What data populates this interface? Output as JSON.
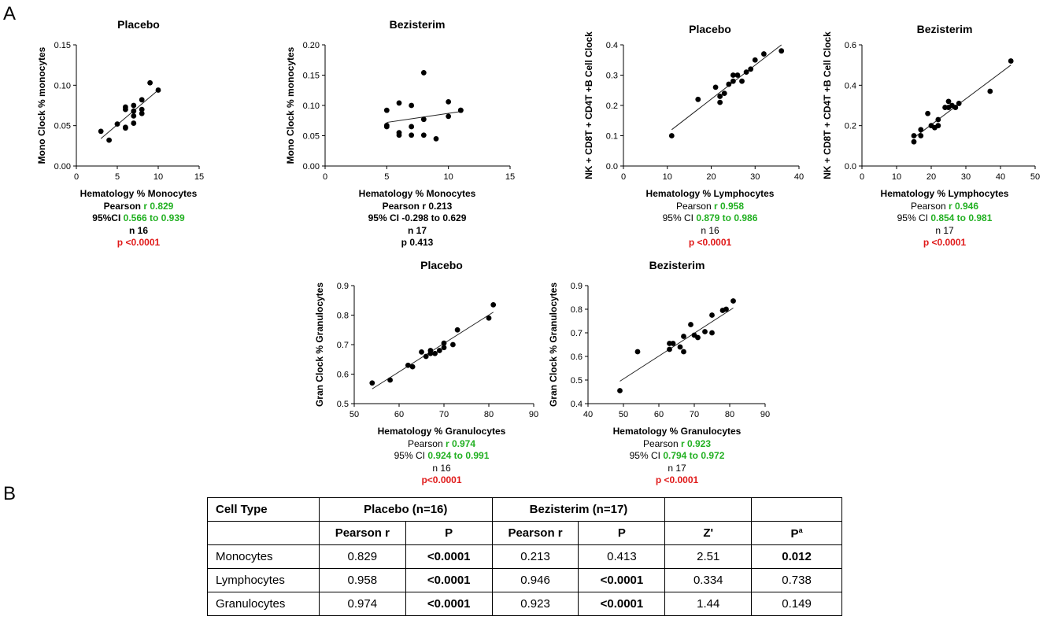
{
  "panels": {
    "a": "A",
    "b": "B"
  },
  "chart_data": [
    {
      "id": "mono-placebo",
      "type": "scatter",
      "title": "Placebo",
      "xlabel": "Hematology % Monocytes",
      "ylabel": "Mono Clock % monocytes",
      "xlim": [
        0,
        15
      ],
      "ylim": [
        0,
        0.15
      ],
      "xticks": [
        "0",
        "5",
        "10",
        "15"
      ],
      "yticks": [
        "0.00",
        "0.05",
        "0.10",
        "0.15"
      ],
      "points": [
        [
          3,
          0.043
        ],
        [
          4,
          0.032
        ],
        [
          5,
          0.052
        ],
        [
          6,
          0.048
        ],
        [
          6,
          0.047
        ],
        [
          6,
          0.07
        ],
        [
          6,
          0.073
        ],
        [
          7,
          0.053
        ],
        [
          7,
          0.062
        ],
        [
          7,
          0.068
        ],
        [
          7,
          0.075
        ],
        [
          8,
          0.065
        ],
        [
          8,
          0.07
        ],
        [
          8,
          0.082
        ],
        [
          9,
          0.103
        ],
        [
          10,
          0.094
        ]
      ],
      "fit": [
        [
          3,
          0.034
        ],
        [
          10,
          0.094
        ]
      ],
      "stats": {
        "pearson_label": "Pearson",
        "r": "r 0.829",
        "ci_label": "95%CI",
        "ci": "0.566 to 0.939",
        "n": "n 16",
        "p": "p <0.0001"
      }
    },
    {
      "id": "mono-bezisterim",
      "type": "scatter",
      "title": "Bezisterim",
      "xlabel": "Hematology % Monocytes",
      "ylabel": "Mono Clock % monocytes",
      "xlim": [
        0,
        15
      ],
      "ylim": [
        0,
        0.2
      ],
      "xticks": [
        "0",
        "5",
        "10",
        "15"
      ],
      "yticks": [
        "0.00",
        "0.05",
        "0.10",
        "0.15",
        "0.20"
      ],
      "points": [
        [
          5,
          0.092
        ],
        [
          5,
          0.065
        ],
        [
          5,
          0.067
        ],
        [
          6,
          0.104
        ],
        [
          6,
          0.055
        ],
        [
          6,
          0.051
        ],
        [
          7,
          0.1
        ],
        [
          7,
          0.065
        ],
        [
          7,
          0.051
        ],
        [
          8,
          0.154
        ],
        [
          8,
          0.077
        ],
        [
          8,
          0.051
        ],
        [
          9,
          0.045
        ],
        [
          10,
          0.106
        ],
        [
          10,
          0.082
        ],
        [
          11,
          0.092
        ],
        [
          11,
          0.092
        ]
      ],
      "fit": [
        [
          5,
          0.072
        ],
        [
          11,
          0.09
        ]
      ],
      "stats": {
        "pearson": "Pearson r 0.213",
        "ci": "95% CI -0.298 to 0.629",
        "n": "n 17",
        "p": "p 0.413"
      }
    },
    {
      "id": "lymph-placebo",
      "type": "scatter",
      "title": "Placebo",
      "xlabel": "Hematology % Lymphocytes",
      "ylabel": "NK + CD8T + CD4T +B Cell Clock",
      "xlim": [
        0,
        40
      ],
      "ylim": [
        0,
        0.4
      ],
      "xticks": [
        "0",
        "10",
        "20",
        "30",
        "40"
      ],
      "yticks": [
        "0.0",
        "0.1",
        "0.2",
        "0.3",
        "0.4"
      ],
      "points": [
        [
          11,
          0.1
        ],
        [
          17,
          0.22
        ],
        [
          21,
          0.26
        ],
        [
          22,
          0.21
        ],
        [
          22,
          0.23
        ],
        [
          23,
          0.24
        ],
        [
          24,
          0.27
        ],
        [
          25,
          0.3
        ],
        [
          25,
          0.28
        ],
        [
          26,
          0.3
        ],
        [
          27,
          0.28
        ],
        [
          28,
          0.31
        ],
        [
          29,
          0.32
        ],
        [
          30,
          0.35
        ],
        [
          32,
          0.37
        ],
        [
          36,
          0.38
        ]
      ],
      "fit": [
        [
          11,
          0.12
        ],
        [
          36,
          0.4
        ]
      ],
      "stats": {
        "pearson_label": "Pearson",
        "r": "r 0.958",
        "ci_label": "95% CI",
        "ci": "0.879 to 0.986",
        "n": "n 16",
        "p": "p <0.0001"
      }
    },
    {
      "id": "lymph-bezisterim",
      "type": "scatter",
      "title": "Bezisterim",
      "xlabel": "Hematology % Lymphocytes",
      "ylabel": "NK + CD8T + CD4T +B Cell Clock",
      "xlim": [
        0,
        50
      ],
      "ylim": [
        0,
        0.6
      ],
      "xticks": [
        "0",
        "10",
        "20",
        "30",
        "40",
        "50"
      ],
      "yticks": [
        "0.0",
        "0.2",
        "0.4",
        "0.6"
      ],
      "points": [
        [
          15,
          0.12
        ],
        [
          15,
          0.15
        ],
        [
          17,
          0.15
        ],
        [
          17,
          0.18
        ],
        [
          19,
          0.26
        ],
        [
          20,
          0.2
        ],
        [
          21,
          0.19
        ],
        [
          22,
          0.2
        ],
        [
          22,
          0.23
        ],
        [
          24,
          0.29
        ],
        [
          25,
          0.32
        ],
        [
          26,
          0.3
        ],
        [
          27,
          0.29
        ],
        [
          28,
          0.31
        ],
        [
          37,
          0.37
        ],
        [
          43,
          0.52
        ],
        [
          25,
          0.29
        ]
      ],
      "fit": [
        [
          15,
          0.14
        ],
        [
          43,
          0.5
        ]
      ],
      "stats": {
        "pearson_label": "Pearson",
        "r": "r 0.946",
        "ci_label": "95% CI",
        "ci": "0.854 to 0.981",
        "n": "n 17",
        "p": "p <0.0001"
      }
    },
    {
      "id": "gran-placebo",
      "type": "scatter",
      "title": "Placebo",
      "xlabel": "Hematology % Granulocytes",
      "ylabel": "Gran Clock % Granulocytes",
      "xlim": [
        50,
        90
      ],
      "ylim": [
        0.5,
        0.9
      ],
      "xticks": [
        "50",
        "60",
        "70",
        "80",
        "90"
      ],
      "yticks": [
        "0.5",
        "0.6",
        "0.7",
        "0.8",
        "0.9"
      ],
      "points": [
        [
          54,
          0.57
        ],
        [
          58,
          0.58
        ],
        [
          62,
          0.63
        ],
        [
          63,
          0.625
        ],
        [
          65,
          0.675
        ],
        [
          66,
          0.66
        ],
        [
          67,
          0.67
        ],
        [
          67,
          0.68
        ],
        [
          68,
          0.67
        ],
        [
          69,
          0.68
        ],
        [
          70,
          0.69
        ],
        [
          70,
          0.705
        ],
        [
          72,
          0.7
        ],
        [
          73,
          0.75
        ],
        [
          80,
          0.79
        ],
        [
          81,
          0.835
        ]
      ],
      "fit": [
        [
          54,
          0.55
        ],
        [
          81,
          0.81
        ]
      ],
      "stats": {
        "pearson_label": "Pearson",
        "r": "r 0.974",
        "ci_label": "95% CI",
        "ci": "0.924 to 0.991",
        "n": "n 16",
        "p": "p<0.0001"
      }
    },
    {
      "id": "gran-bezisterim",
      "type": "scatter",
      "title": "Bezisterim",
      "xlabel": "Hematology % Granulocytes",
      "ylabel": "Gran Clock % Granulocytes",
      "xlim": [
        40,
        90
      ],
      "ylim": [
        0.4,
        0.9
      ],
      "xticks": [
        "40",
        "50",
        "60",
        "70",
        "80",
        "90"
      ],
      "yticks": [
        "0.4",
        "0.5",
        "0.6",
        "0.7",
        "0.8",
        "0.9"
      ],
      "points": [
        [
          49,
          0.455
        ],
        [
          54,
          0.62
        ],
        [
          63,
          0.63
        ],
        [
          63,
          0.655
        ],
        [
          64,
          0.655
        ],
        [
          66,
          0.64
        ],
        [
          67,
          0.62
        ],
        [
          67,
          0.685
        ],
        [
          69,
          0.735
        ],
        [
          70,
          0.69
        ],
        [
          71,
          0.68
        ],
        [
          73,
          0.705
        ],
        [
          75,
          0.7
        ],
        [
          75,
          0.775
        ],
        [
          78,
          0.795
        ],
        [
          79,
          0.8
        ],
        [
          81,
          0.835
        ]
      ],
      "fit": [
        [
          49,
          0.495
        ],
        [
          81,
          0.805
        ]
      ],
      "stats": {
        "pearson_label": "Pearson",
        "r": "r 0.923",
        "ci_label": "95% CI",
        "ci": "0.794 to 0.972",
        "n": "n 17",
        "p": "p <0.0001"
      }
    }
  ],
  "table": {
    "header1": {
      "cell_type": "Cell Type",
      "placebo": "Placebo (n=16)",
      "bezisterim": "Bezisterim (n=17)"
    },
    "header2": {
      "pearson_p": "Pearson r",
      "p_p": "P",
      "pearson_b": "Pearson r",
      "p_b": "P",
      "z": "Z'",
      "pa": "P",
      "pa_sup": "a"
    },
    "rows": [
      {
        "name": "Monocytes",
        "r_p": "0.829",
        "p_p": "<0.0001",
        "r_b": "0.213",
        "p_b": "0.413",
        "z": "2.51",
        "pa": "0.012"
      },
      {
        "name": "Lymphocytes",
        "r_p": "0.958",
        "p_p": "<0.0001",
        "r_b": "0.946",
        "p_b": "<0.0001",
        "z": "0.334",
        "pa": "0.738"
      },
      {
        "name": "Granulocytes",
        "r_p": "0.974",
        "p_p": "<0.0001",
        "r_b": "0.923",
        "p_b": "<0.0001",
        "z": "1.44",
        "pa": "0.149"
      }
    ]
  }
}
